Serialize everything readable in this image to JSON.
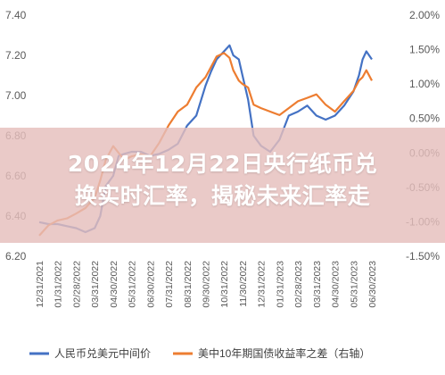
{
  "headline": {
    "line1": "2024年12月22日央行纸币兑",
    "line2": "换实时汇率，揭秘未来汇率走"
  },
  "chart_data": {
    "type": "line",
    "title": "",
    "xlabel": "",
    "ylabel": "",
    "grid": false,
    "legend_position": "bottom",
    "left_axis": {
      "ylim": [
        6.2,
        7.4
      ],
      "ticks": [
        "6.20",
        "6.40",
        "6.60",
        "6.80",
        "7.00",
        "7.20",
        "7.40"
      ]
    },
    "right_axis": {
      "ylim": [
        -1.5,
        2.0
      ],
      "ticks": [
        "-1.50%",
        "-1.00%",
        "-0.50%",
        "0.00%",
        "0.50%",
        "1.00%",
        "1.50%",
        "2.00%"
      ]
    },
    "x_ticks": [
      "12/31/2021",
      "01/31/2022",
      "02/28/2022",
      "03/31/2022",
      "04/30/2022",
      "05/31/2022",
      "06/30/2022",
      "07/31/2022",
      "08/31/2022",
      "09/30/2022",
      "10/31/2022",
      "11/30/2022",
      "12/31/2022",
      "01/31/2023",
      "02/28/2023",
      "03/31/2023",
      "04/30/2023",
      "05/31/2023",
      "06/30/2023"
    ],
    "series": [
      {
        "name": "人民币兑美元中间价",
        "axis": "left",
        "color": "#4472C4",
        "x": [
          0,
          0.5,
          1,
          1.5,
          2,
          2.5,
          3,
          3.3,
          3.6,
          4,
          4.3,
          4.6,
          5,
          5.5,
          6,
          6.5,
          7,
          7.5,
          8,
          8.5,
          9,
          9.3,
          9.6,
          10,
          10.3,
          10.5,
          10.8,
          11,
          11.3,
          11.6,
          12,
          12.5,
          13,
          13.5,
          14,
          14.5,
          15,
          15.5,
          16,
          16.5,
          17,
          17.3,
          17.5,
          17.7,
          18
        ],
        "values": [
          6.37,
          6.36,
          6.36,
          6.35,
          6.34,
          6.32,
          6.34,
          6.4,
          6.55,
          6.6,
          6.7,
          6.71,
          6.72,
          6.72,
          6.7,
          6.71,
          6.73,
          6.76,
          6.85,
          6.9,
          7.05,
          7.12,
          7.18,
          7.22,
          7.25,
          7.2,
          7.18,
          7.1,
          6.98,
          6.8,
          6.75,
          6.72,
          6.78,
          6.9,
          6.92,
          6.95,
          6.9,
          6.88,
          6.9,
          6.95,
          7.02,
          7.1,
          7.18,
          7.22,
          7.18
        ]
      },
      {
        "name": "美中10年期国债收益率之差（右轴）",
        "axis": "right",
        "color": "#ED7D31",
        "x": [
          0,
          0.5,
          1,
          1.5,
          2,
          2.5,
          3,
          3.3,
          3.6,
          4,
          4.3,
          4.6,
          5,
          5.5,
          6,
          6.5,
          7,
          7.5,
          8,
          8.5,
          9,
          9.3,
          9.6,
          10,
          10.3,
          10.5,
          10.8,
          11,
          11.3,
          11.6,
          12,
          12.5,
          13,
          13.5,
          14,
          14.5,
          15,
          15.5,
          16,
          16.5,
          17,
          17.3,
          17.5,
          17.7,
          18
        ],
        "values": [
          -1.2,
          -1.05,
          -0.98,
          -0.95,
          -0.88,
          -0.8,
          -0.65,
          -0.4,
          -0.1,
          0.1,
          0.0,
          -0.1,
          -0.05,
          -0.02,
          -0.05,
          0.15,
          0.4,
          0.6,
          0.7,
          0.95,
          1.1,
          1.25,
          1.4,
          1.45,
          1.38,
          1.2,
          1.05,
          1.0,
          0.95,
          0.7,
          0.65,
          0.6,
          0.55,
          0.65,
          0.75,
          0.8,
          0.85,
          0.7,
          0.6,
          0.75,
          0.9,
          1.05,
          1.1,
          1.2,
          1.05
        ]
      }
    ]
  }
}
